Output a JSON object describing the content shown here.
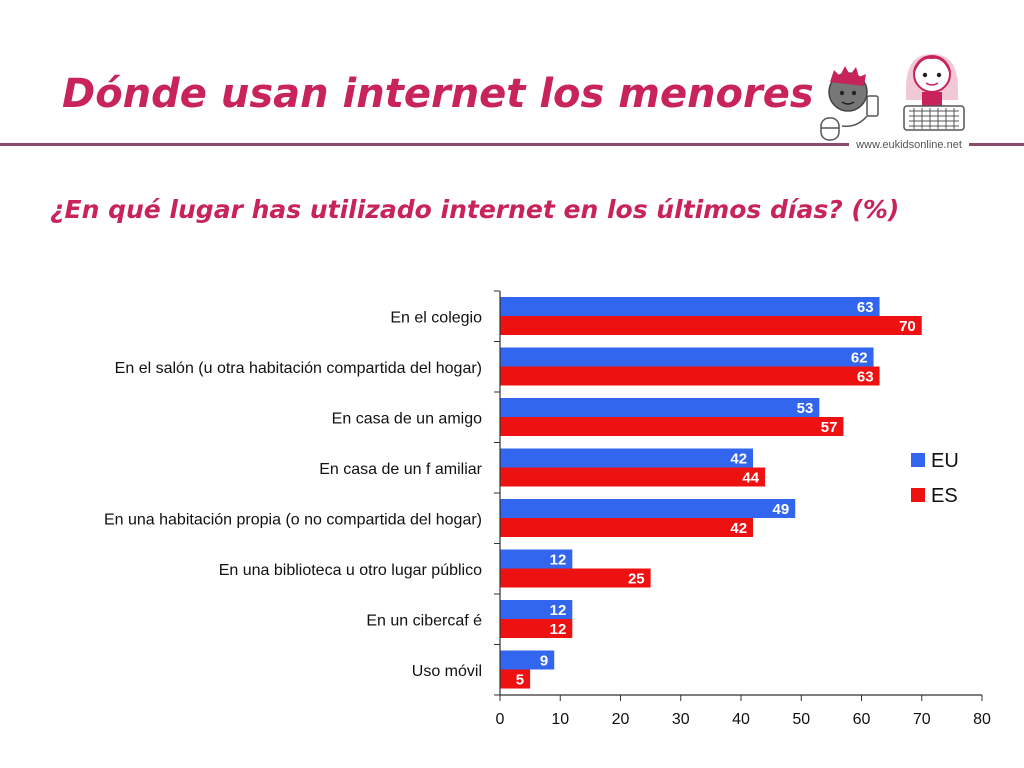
{
  "slide": {
    "title": "Dónde usan internet los menores",
    "question": "¿En qué lugar has utilizado internet en los últimos días? (%)",
    "url": "www.eukidsonline.net",
    "logo_icon": "eu-kids-online-logo-icon"
  },
  "colors": {
    "title": "#c8235a",
    "question": "#c8235a",
    "rule": "#8b4a6b",
    "eu": "#3366ee",
    "es": "#ee1111",
    "axis": "#333333",
    "text": "#111111",
    "value_label": "#ffffff"
  },
  "chart_data": {
    "type": "bar",
    "orientation": "horizontal",
    "categories": [
      "En el colegio",
      "En el salón (u otra habitación compartida del hogar)",
      "En casa de un amigo",
      "En casa de un f amiliar",
      "En una habitación propia (o no compartida del hogar)",
      "En una biblioteca u otro lugar público",
      "En un cibercaf é",
      "Uso móvil"
    ],
    "series": [
      {
        "name": "EU",
        "values": [
          63,
          62,
          53,
          42,
          49,
          12,
          12,
          9
        ]
      },
      {
        "name": "ES",
        "values": [
          70,
          63,
          57,
          44,
          42,
          25,
          12,
          5
        ]
      }
    ],
    "xlim": [
      0,
      80
    ],
    "xticks": [
      "0",
      "10",
      "20",
      "30",
      "40",
      "50",
      "60",
      "70",
      "80"
    ],
    "data_labels": true,
    "grid": false,
    "legend": "right"
  }
}
